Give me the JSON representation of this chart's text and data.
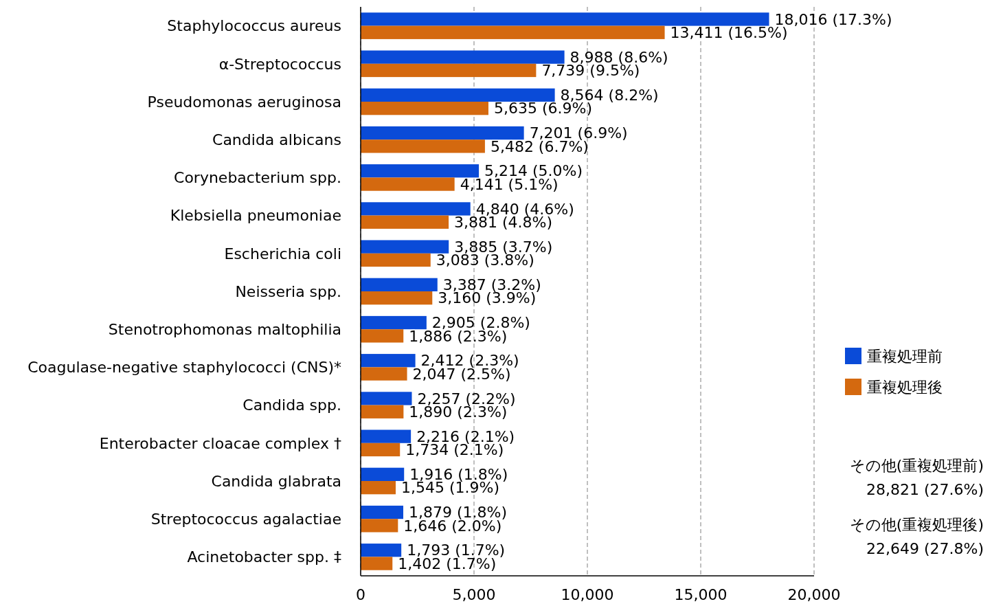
{
  "chart_data": {
    "type": "bar",
    "orientation": "horizontal",
    "categories": [
      "Staphylococcus aureus",
      "α-Streptococcus",
      "Pseudomonas aeruginosa",
      "Candida albicans",
      "Corynebacterium spp.",
      "Klebsiella pneumoniae",
      "Escherichia coli",
      "Neisseria spp.",
      "Stenotrophomonas maltophilia",
      "Coagulase-negative staphylococci (CNS)*",
      "Candida spp.",
      "Enterobacter cloacae complex †",
      "Candida glabrata",
      "Streptococcus agalactiae",
      "Acinetobacter spp. ‡"
    ],
    "series": [
      {
        "name": "重複処理前",
        "color": "#0a4bd8",
        "values": [
          18016,
          8988,
          8564,
          7201,
          5214,
          4840,
          3885,
          3387,
          2905,
          2412,
          2257,
          2216,
          1916,
          1879,
          1793
        ],
        "value_labels": [
          "18,016 (17.3%)",
          "8,988 (8.6%)",
          "8,564 (8.2%)",
          "7,201 (6.9%)",
          "5,214 (5.0%)",
          "4,840 (4.6%)",
          "3,885 (3.7%)",
          "3,387 (3.2%)",
          "2,905 (2.8%)",
          "2,412 (2.3%)",
          "2,257 (2.2%)",
          "2,216 (2.1%)",
          "1,916 (1.8%)",
          "1,879 (1.8%)",
          "1,793 (1.7%)"
        ]
      },
      {
        "name": "重複処理後",
        "color": "#d4690f",
        "values": [
          13411,
          7739,
          5635,
          5482,
          4141,
          3881,
          3083,
          3160,
          1886,
          2047,
          1890,
          1734,
          1545,
          1646,
          1402
        ],
        "value_labels": [
          "13,411 (16.5%)",
          "7,739 (9.5%)",
          "5,635 (6.9%)",
          "5,482 (6.7%)",
          "4,141 (5.1%)",
          "3,881 (4.8%)",
          "3,083 (3.8%)",
          "3,160 (3.9%)",
          "1,886 (2.3%)",
          "2,047 (2.5%)",
          "1,890 (2.3%)",
          "1,734 (2.1%)",
          "1,545 (1.9%)",
          "1,646 (2.0%)",
          "1,402 (1.7%)"
        ]
      }
    ],
    "xlim": [
      0,
      20000
    ],
    "xticks": [
      0,
      {
        "value": 5000,
        "label": "5,000"
      },
      {
        "value": 10000,
        "label": "10,000"
      },
      {
        "value": 15000,
        "label": "15,000"
      },
      {
        "value": 20000,
        "label": "20,000"
      }
    ],
    "grid": "x",
    "legend": "right",
    "annotations": [
      "その他(重複処理前)",
      "28,821 (27.6%)",
      "その他(重複処理後)",
      "22,649 (27.8%)"
    ]
  }
}
